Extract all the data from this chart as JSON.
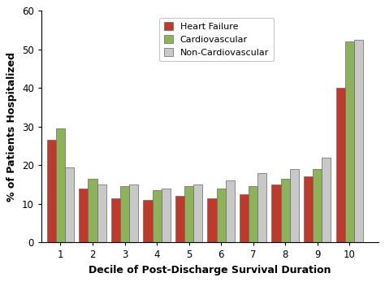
{
  "categories": [
    1,
    2,
    3,
    4,
    5,
    6,
    7,
    8,
    9,
    10
  ],
  "heart_failure": [
    26.5,
    14.0,
    11.5,
    11.0,
    12.0,
    11.5,
    12.5,
    15.0,
    17.0,
    40.0
  ],
  "cardiovascular": [
    29.5,
    16.5,
    14.5,
    13.5,
    14.5,
    14.0,
    14.5,
    16.5,
    19.0,
    52.0
  ],
  "non_cardiovascular": [
    19.5,
    15.0,
    15.0,
    14.0,
    15.0,
    16.0,
    18.0,
    19.0,
    22.0,
    52.5
  ],
  "heart_failure_color": "#c1392b",
  "cardiovascular_color": "#8db35a",
  "non_cardiovascular_color": "#c8c8c8",
  "bar_edge_color": "#666666",
  "ylabel": "% of Patients Hospitalized",
  "xlabel": "Decile of Post-Discharge Survival Duration",
  "ylim": [
    0,
    60
  ],
  "yticks": [
    0,
    10,
    20,
    30,
    40,
    50,
    60
  ],
  "legend_labels": [
    "Heart Failure",
    "Cardiovascular",
    "Non-Cardiovascular"
  ],
  "bar_width": 0.28,
  "axis_fontsize": 9,
  "tick_fontsize": 8.5,
  "legend_fontsize": 8
}
